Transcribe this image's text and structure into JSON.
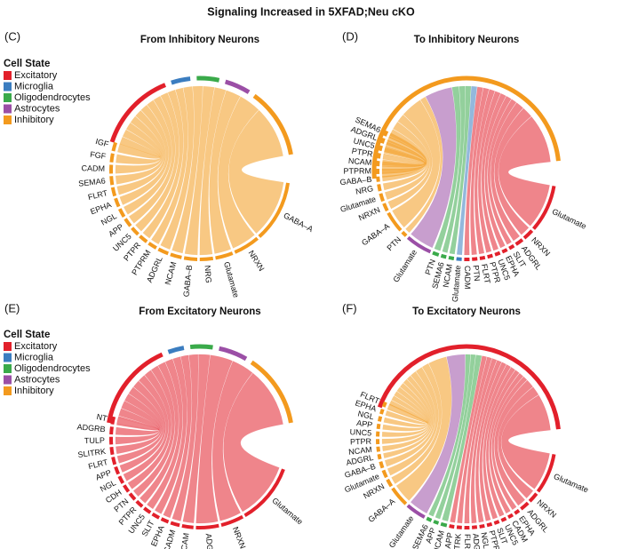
{
  "title": "Signaling Increased in 5XFAD;Neu cKO",
  "legend": {
    "title": "Cell State",
    "items": [
      {
        "label": "Excitatory",
        "color": "#e2202b"
      },
      {
        "label": "Microglia",
        "color": "#3b7dc0"
      },
      {
        "label": "Oligodendrocytes",
        "color": "#3aaa4a"
      },
      {
        "label": "Astrocytes",
        "color": "#9b4fa6"
      },
      {
        "label": "Inhibitory",
        "color": "#f39a1e"
      }
    ]
  },
  "panels": [
    {
      "letter": "(C)",
      "title": "From Inhibitory Neurons",
      "groups": [
        {
          "color": "#f39a1e",
          "labels": [
            "GABA–A",
            "NRXN",
            "Glutamate",
            "NRG",
            "GABA–B",
            "NCAM",
            "ADGRL",
            "PTPRM",
            "PTPR",
            "UNC5",
            "APP",
            "NGL",
            "EPHA",
            "FLRT",
            "SEMA6",
            "CADM",
            "FGF",
            "IGF"
          ]
        }
      ]
    },
    {
      "letter": "(D)",
      "title": "To Inhibitory Neurons",
      "groups": [
        {
          "color": "#e2202b",
          "labels": [
            "Glutamate",
            "NRXN",
            "ADGRL",
            "SLIT",
            "EPHA",
            "UNC5",
            "PTPR",
            "FLRT",
            "PTN",
            "CADM"
          ]
        },
        {
          "color": "#3b7dc0",
          "labels": [
            "Glutamate"
          ]
        },
        {
          "color": "#3aaa4a",
          "labels": [
            "NCAM",
            "SEMA6",
            "PTN"
          ]
        },
        {
          "color": "#9b4fa6",
          "labels": [
            "Glutamate"
          ]
        },
        {
          "color": "#f39a1e",
          "labels": [
            "PTN",
            "GABA–A",
            "NRXN",
            "Glutamate",
            "NRG",
            "GABA–B",
            "PTPRM",
            "NCAM",
            "PTPR",
            "UNC5",
            "ADGRL",
            "SEMA6"
          ]
        }
      ]
    },
    {
      "letter": "(E)",
      "title": "From Excitatory Neurons",
      "groups": [
        {
          "color": "#e2202b",
          "labels": [
            "Glutamate",
            "NRXN",
            "ADGRL",
            "NCAM",
            "CADM",
            "EPHA",
            "SLIT",
            "UNC5",
            "PTPR",
            "PTN",
            "CDH",
            "NGL",
            "APP",
            "FLRT",
            "SLITRK",
            "TULP",
            "ADGRB",
            "NT"
          ]
        }
      ]
    },
    {
      "letter": "(F)",
      "title": "To Excitatory Neurons",
      "groups": [
        {
          "color": "#e2202b",
          "labels": [
            "Glutamate",
            "NRXN",
            "ADGRL",
            "EPHA",
            "CADM",
            "UNC5",
            "SLIT",
            "PTPR",
            "NGL",
            "ADGB",
            "FLRT",
            "SLITRK",
            "APP"
          ]
        },
        {
          "color": "#3aaa4a",
          "labels": [
            "NCAM",
            "APP",
            "SEMA6"
          ]
        },
        {
          "color": "#9b4fa6",
          "labels": [
            "Glutamate"
          ]
        },
        {
          "color": "#f39a1e",
          "labels": [
            "GABA–A",
            "NRXN",
            "Glutamate",
            "GABA–B",
            "ADGRL",
            "NCAM",
            "PTPR",
            "UNC5",
            "APP",
            "NGL",
            "EPHA",
            "FLRT"
          ]
        }
      ]
    }
  ]
}
